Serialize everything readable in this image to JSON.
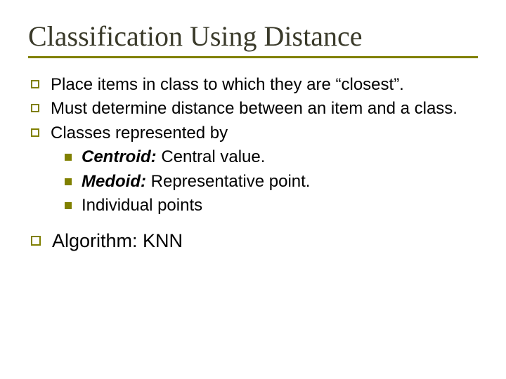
{
  "colors": {
    "accent": "#808000",
    "title_color": "#3a3a2a",
    "body_color": "#000000",
    "background": "#ffffff"
  },
  "typography": {
    "title_font": "Times New Roman",
    "body_font": "Verdana",
    "title_size_pt": 40,
    "body_size_pt": 24,
    "algorithm_size_pt": 27
  },
  "title": "Classification Using Distance",
  "bullets": {
    "b1": "Place items in class to which  they are “closest”.",
    "b2": "Must determine distance between an item and a class.",
    "b3": "Classes represented by",
    "b3_sub": {
      "s1_term": "Centroid:",
      "s1_rest": " Central value.",
      "s2_term": "Medoid:",
      "s2_rest": "  Representative point.",
      "s3": "Individual points"
    },
    "b4_label": "Algorithm:",
    "b4_rest": "  KNN"
  }
}
